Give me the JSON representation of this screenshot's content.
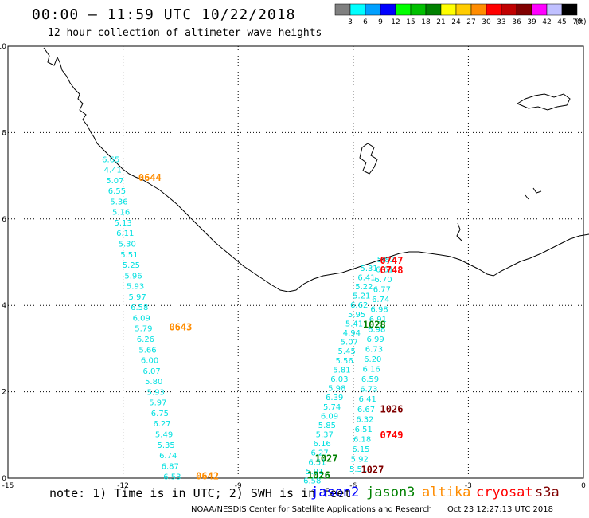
{
  "header": {
    "title": "00:00 – 11:59 UTC 10/22/2018",
    "subtitle": "12 hour collection of altimeter wave heights"
  },
  "colorbar": {
    "unit": "(ft)",
    "bins": [
      {
        "label": "3",
        "color": "#808080"
      },
      {
        "label": "6",
        "color": "#00ffff"
      },
      {
        "label": "9",
        "color": "#00a0ff"
      },
      {
        "label": "12",
        "color": "#0000ff"
      },
      {
        "label": "15",
        "color": "#00ff00"
      },
      {
        "label": "18",
        "color": "#00c000"
      },
      {
        "label": "21",
        "color": "#008000"
      },
      {
        "label": "24",
        "color": "#ffff00"
      },
      {
        "label": "27",
        "color": "#ffcc00"
      },
      {
        "label": "30",
        "color": "#ff8c00"
      },
      {
        "label": "33",
        "color": "#ff0000"
      },
      {
        "label": "36",
        "color": "#c00000"
      },
      {
        "label": "39",
        "color": "#800000"
      },
      {
        "label": "42",
        "color": "#ff00ff"
      },
      {
        "label": "45",
        "color": "#c0c0ff"
      },
      {
        "label": "70",
        "color": "#000000"
      }
    ]
  },
  "axes": {
    "x_ticks": [
      {
        "label": "-15",
        "value": -15
      },
      {
        "label": "-12",
        "value": -12
      },
      {
        "label": "-9",
        "value": -9
      },
      {
        "label": "-6",
        "value": -6
      },
      {
        "label": "-3",
        "value": -3
      },
      {
        "label": "0",
        "value": 0
      }
    ],
    "y_ticks": [
      {
        "label": "0",
        "value": 0
      },
      {
        "label": "2",
        "value": 2
      },
      {
        "label": "4",
        "value": 4
      },
      {
        "label": "6",
        "value": 6
      },
      {
        "label": "8",
        "value": 8
      },
      {
        "label": "10",
        "value": 10
      }
    ]
  },
  "tracks": [
    {
      "mission": "altika",
      "color": "#00e0e0",
      "values": [
        "6.65",
        "4.41",
        "5.07",
        "6.55",
        "5.36",
        "5.16",
        "5.13",
        "6.11",
        "5.30",
        "5.51",
        "5.25",
        "5.96",
        "5.93",
        "5.97",
        "6.58",
        "6.09",
        "5.79",
        "6.26",
        "5.66",
        "6.00",
        "6.07",
        "5.80",
        "5.93",
        "5.97",
        "6.75",
        "6.27",
        "5.49",
        "5.35",
        "6.74",
        "6.87",
        "6.53"
      ],
      "start": [
        -12.55,
        7.32
      ],
      "end": [
        -10.95,
        -0.03
      ]
    },
    {
      "mission": "jason3",
      "color": "#00e0e0",
      "values": [
        "5.31",
        "6.41",
        "5.22",
        "5.21",
        "6.62",
        "5.95",
        "5.41",
        "4.94",
        "5.07",
        "5.45",
        "5.56",
        "5.81",
        "6.03",
        "5.98",
        "6.39",
        "5.74",
        "6.09",
        "5.85",
        "5.37",
        "6.16",
        "6.27",
        "6.51",
        "5.91",
        "6.58"
      ],
      "start": [
        -5.82,
        4.8
      ],
      "end": [
        -7.3,
        -0.12
      ]
    },
    {
      "mission": "cryosat",
      "color": "#00e0e0",
      "values": [
        "5.82",
        "6.61",
        "6.70",
        "6.77",
        "6.74",
        "6.98",
        "6.91",
        "6.98",
        "6.99",
        "6.73",
        "6.20",
        "6.16",
        "6.59",
        "6.73",
        "6.41",
        "6.67",
        "6.32",
        "6.51",
        "6.18",
        "6.15",
        "5.92",
        "5.51"
      ],
      "start": [
        -5.38,
        5.0
      ],
      "end": [
        -6.1,
        0.15
      ]
    }
  ],
  "time_labels": [
    {
      "text": "0644",
      "color": "#ff8c00",
      "lon": -11.6,
      "lat": 6.88
    },
    {
      "text": "0643",
      "color": "#ff8c00",
      "lon": -10.8,
      "lat": 3.42
    },
    {
      "text": "0642",
      "color": "#ff8c00",
      "lon": -10.1,
      "lat": -0.03
    },
    {
      "text": "0747",
      "color": "#ff0000",
      "lon": -5.3,
      "lat": 4.96
    },
    {
      "text": "0748",
      "color": "#ff0000",
      "lon": -5.3,
      "lat": 4.74
    },
    {
      "text": "0749",
      "color": "#ff0000",
      "lon": -5.3,
      "lat": 0.92
    },
    {
      "text": "1026",
      "color": "#800000",
      "lon": -5.3,
      "lat": 1.52
    },
    {
      "text": "1027",
      "color": "#800000",
      "lon": -5.8,
      "lat": 0.12
    },
    {
      "text": "1028",
      "color": "#008000",
      "lon": -5.75,
      "lat": 3.48
    },
    {
      "text": "1027",
      "color": "#008000",
      "lon": -7.0,
      "lat": 0.38
    },
    {
      "text": "1026",
      "color": "#008000",
      "lon": -7.2,
      "lat": -0.01
    }
  ],
  "note_text": "note: 1) Time is in UTC; 2) SWH is in feet",
  "missions": [
    {
      "name": "jason2",
      "color": "#0000ff"
    },
    {
      "name": "jason3",
      "color": "#008000"
    },
    {
      "name": "altika",
      "color": "#ff8c00"
    },
    {
      "name": "cryosat",
      "color": "#ff0000"
    },
    {
      "name": "s3a",
      "color": "#800000"
    }
  ],
  "footer": {
    "center": "NOAA/NESDIS Center for Satellite Applications and Research",
    "timestamp": "Oct 23 12:27:13 UTC 2018"
  }
}
